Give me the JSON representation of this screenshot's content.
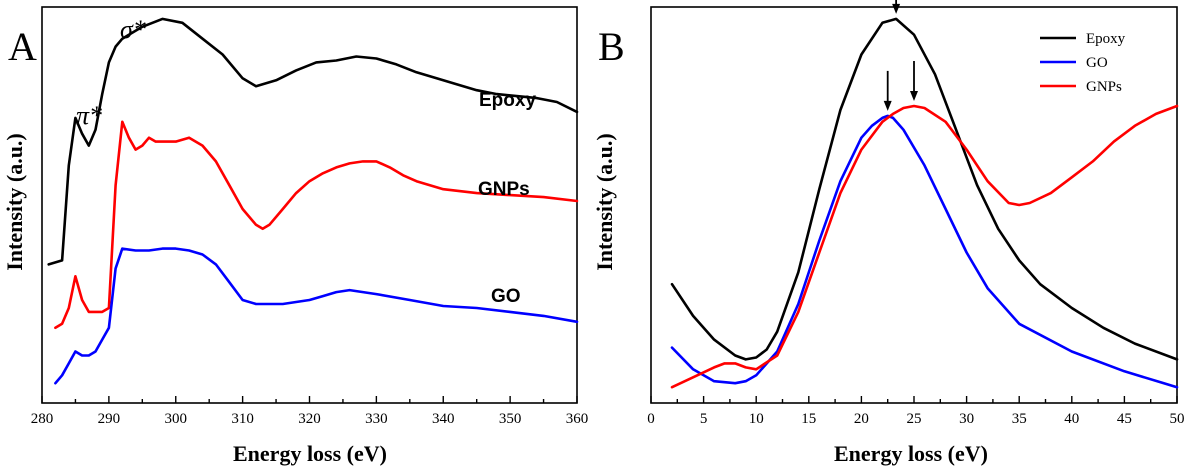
{
  "chart_data": [
    {
      "type": "line",
      "panel_label": "A",
      "xlabel": "Energy loss (eV)",
      "ylabel": "Intensity (a.u.)",
      "xlim": [
        280,
        360
      ],
      "ylim": [
        0,
        10
      ],
      "x_ticks": [
        "280",
        "290",
        "300",
        "310",
        "320",
        "330",
        "340",
        "350",
        "360"
      ],
      "y_ticks_visible": false,
      "grid": false,
      "annotations": [
        {
          "text": "π*",
          "x": 285,
          "y": 7.6
        },
        {
          "text": "σ*",
          "x": 292,
          "y": 9.9
        }
      ],
      "series": [
        {
          "name": "Epoxy",
          "color": "#000000",
          "x": [
            281,
            283,
            284,
            285,
            286,
            287,
            288,
            289,
            290,
            291,
            292,
            295,
            298,
            301,
            304,
            307,
            310,
            312,
            315,
            318,
            321,
            324,
            327,
            330,
            333,
            336,
            339,
            342,
            345,
            348,
            351,
            354,
            357,
            360
          ],
          "y": [
            3.5,
            3.6,
            6.0,
            7.2,
            6.8,
            6.5,
            6.9,
            7.8,
            8.6,
            9.0,
            9.2,
            9.5,
            9.7,
            9.6,
            9.2,
            8.8,
            8.2,
            8.0,
            8.15,
            8.4,
            8.6,
            8.65,
            8.75,
            8.7,
            8.55,
            8.35,
            8.2,
            8.05,
            7.9,
            7.8,
            7.75,
            7.7,
            7.6,
            7.35
          ]
        },
        {
          "name": "GNPs",
          "color": "#ff0000",
          "x": [
            282,
            283,
            284,
            285,
            286,
            287,
            288,
            289,
            290,
            291,
            292,
            293,
            294,
            295,
            296,
            297,
            298,
            300,
            302,
            304,
            306,
            308,
            310,
            312,
            313,
            314,
            316,
            318,
            320,
            322,
            324,
            326,
            328,
            330,
            332,
            334,
            336,
            338,
            340,
            345,
            350,
            355,
            360
          ],
          "y": [
            1.9,
            2.0,
            2.4,
            3.2,
            2.6,
            2.3,
            2.3,
            2.3,
            2.4,
            5.5,
            7.1,
            6.7,
            6.4,
            6.5,
            6.7,
            6.6,
            6.6,
            6.6,
            6.7,
            6.5,
            6.1,
            5.5,
            4.9,
            4.5,
            4.4,
            4.5,
            4.9,
            5.3,
            5.6,
            5.8,
            5.95,
            6.05,
            6.1,
            6.1,
            5.95,
            5.75,
            5.6,
            5.5,
            5.4,
            5.3,
            5.25,
            5.2,
            5.1
          ]
        },
        {
          "name": "GO",
          "color": "#0000ff",
          "x": [
            282,
            283,
            284,
            285,
            286,
            287,
            288,
            289,
            290,
            291,
            292,
            294,
            296,
            298,
            300,
            302,
            304,
            306,
            308,
            310,
            312,
            314,
            316,
            318,
            320,
            322,
            324,
            326,
            328,
            330,
            335,
            340,
            345,
            350,
            355,
            360
          ],
          "y": [
            0.5,
            0.7,
            1.0,
            1.3,
            1.2,
            1.2,
            1.3,
            1.6,
            1.9,
            3.4,
            3.9,
            3.85,
            3.85,
            3.9,
            3.9,
            3.85,
            3.75,
            3.5,
            3.05,
            2.6,
            2.5,
            2.5,
            2.5,
            2.55,
            2.6,
            2.7,
            2.8,
            2.85,
            2.8,
            2.75,
            2.6,
            2.45,
            2.4,
            2.3,
            2.2,
            2.05
          ]
        }
      ]
    },
    {
      "type": "line",
      "panel_label": "B",
      "xlabel": "Energy loss (eV)",
      "ylabel": "Intensity (a.u.)",
      "xlim": [
        0,
        50
      ],
      "ylim": [
        0,
        10
      ],
      "x_ticks": [
        "0",
        "5",
        "10",
        "15",
        "20",
        "25",
        "30",
        "35",
        "40",
        "45",
        "50"
      ],
      "y_ticks_visible": false,
      "grid": false,
      "legend": {
        "placement": "top-right",
        "entries": [
          "Epoxy",
          "GO",
          "GNPs"
        ]
      },
      "peak_arrows": [
        {
          "series": "Epoxy",
          "x": 23.3
        },
        {
          "series": "GO",
          "x": 22.5
        },
        {
          "series": "GNPs",
          "x": 25.0
        }
      ],
      "series": [
        {
          "name": "Epoxy",
          "color": "#000000",
          "x": [
            2,
            4,
            6,
            8,
            9,
            10,
            11,
            12,
            14,
            16,
            18,
            20,
            22,
            23.3,
            25,
            27,
            29,
            31,
            33,
            35,
            37,
            40,
            43,
            46,
            50
          ],
          "y": [
            3.0,
            2.2,
            1.6,
            1.2,
            1.1,
            1.15,
            1.35,
            1.8,
            3.3,
            5.4,
            7.4,
            8.8,
            9.6,
            9.7,
            9.3,
            8.3,
            6.9,
            5.5,
            4.4,
            3.6,
            3.0,
            2.4,
            1.9,
            1.5,
            1.1
          ]
        },
        {
          "name": "GO",
          "color": "#0000ff",
          "x": [
            2,
            4,
            6,
            8,
            9,
            10,
            12,
            14,
            16,
            18,
            20,
            21,
            22,
            22.5,
            23,
            24,
            26,
            28,
            30,
            32,
            35,
            40,
            45,
            50
          ],
          "y": [
            1.4,
            0.85,
            0.55,
            0.5,
            0.55,
            0.7,
            1.3,
            2.5,
            4.1,
            5.6,
            6.7,
            7.0,
            7.2,
            7.25,
            7.2,
            6.9,
            6.0,
            4.9,
            3.8,
            2.9,
            2.0,
            1.3,
            0.8,
            0.4
          ]
        },
        {
          "name": "GNPs",
          "color": "#ff0000",
          "x": [
            2,
            4,
            6,
            7,
            8,
            9,
            10,
            12,
            14,
            16,
            18,
            20,
            22,
            23,
            24,
            25,
            26,
            28,
            30,
            32,
            34,
            35,
            36,
            38,
            40,
            42,
            44,
            46,
            48,
            50
          ],
          "y": [
            0.4,
            0.65,
            0.9,
            1.0,
            1.0,
            0.9,
            0.85,
            1.2,
            2.3,
            3.8,
            5.3,
            6.4,
            7.1,
            7.3,
            7.45,
            7.5,
            7.45,
            7.1,
            6.4,
            5.6,
            5.05,
            5.0,
            5.05,
            5.3,
            5.7,
            6.1,
            6.6,
            7.0,
            7.3,
            7.5
          ]
        }
      ]
    }
  ]
}
